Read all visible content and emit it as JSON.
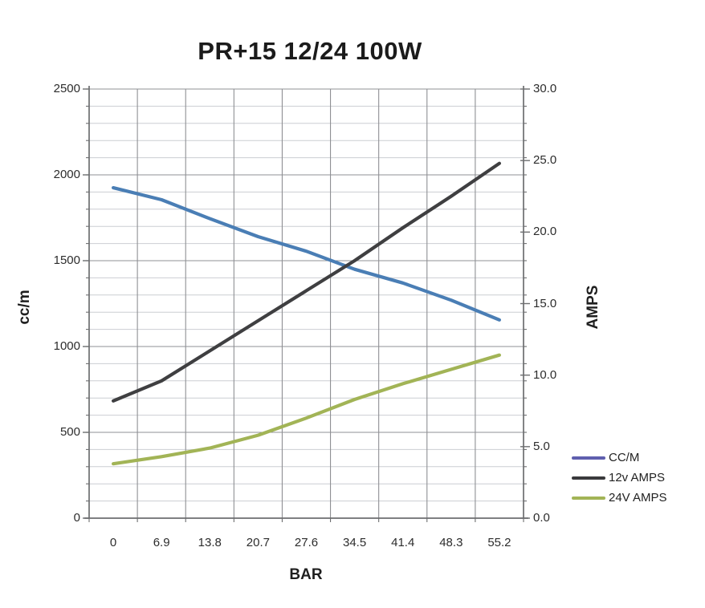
{
  "page": {
    "background": "#ffffff"
  },
  "chart_data": {
    "type": "line",
    "title": "PR+15 12/24 100W",
    "xlabel": "BAR",
    "categories": [
      0,
      6.9,
      13.8,
      20.7,
      27.6,
      34.5,
      41.4,
      48.3,
      55.2
    ],
    "x_tick_labels": [
      "0",
      "6.9",
      "13.8",
      "20.7",
      "27.6",
      "34.5",
      "41.4",
      "48.3",
      "55.2"
    ],
    "y_left": {
      "label": "cc/m",
      "lim": [
        0,
        2500
      ],
      "tick_values": [
        0,
        500,
        1000,
        1500,
        2000,
        2500
      ],
      "tick_labels": [
        "0",
        "500",
        "1000",
        "1500",
        "2000",
        "2500"
      ],
      "minor_step": 100
    },
    "y_right": {
      "label": "AMPS",
      "lim": [
        0,
        30
      ],
      "tick_values": [
        0,
        5,
        10,
        15,
        20,
        25,
        30
      ],
      "tick_labels": [
        "0.0",
        "5.0",
        "10.0",
        "15.0",
        "20.0",
        "25.0",
        "30.0"
      ],
      "minor_step": 1.2
    },
    "series": [
      {
        "name": "CC/M",
        "axis": "left",
        "color": "#4a7eb5",
        "legend_swatch_color": "#5f5fae",
        "values": [
          1925,
          1855,
          1745,
          1640,
          1555,
          1450,
          1370,
          1270,
          1155
        ]
      },
      {
        "name": "12v AMPS",
        "axis": "right",
        "color": "#3f3f41",
        "legend_swatch_color": "#3a3a3c",
        "values": [
          8.2,
          9.6,
          11.7,
          13.8,
          15.9,
          18.0,
          20.3,
          22.5,
          24.8
        ]
      },
      {
        "name": "24V AMPS",
        "axis": "right",
        "color": "#a2b456",
        "legend_swatch_color": "#a2b456",
        "values": [
          3.8,
          4.3,
          4.9,
          5.8,
          7.0,
          8.3,
          9.4,
          10.4,
          11.4
        ]
      }
    ],
    "grid": {
      "vertical": "category-band-edges",
      "horizontal_minor": true,
      "horizontal_major": true
    },
    "legend_position": "outside-bottom-right"
  },
  "style": {
    "grid_minor_color": "#ccced2",
    "grid_major_color": "#8f9094",
    "axis_color": "#6d6e70",
    "tick_color": "#6d6e70",
    "line_width": 4.2
  }
}
